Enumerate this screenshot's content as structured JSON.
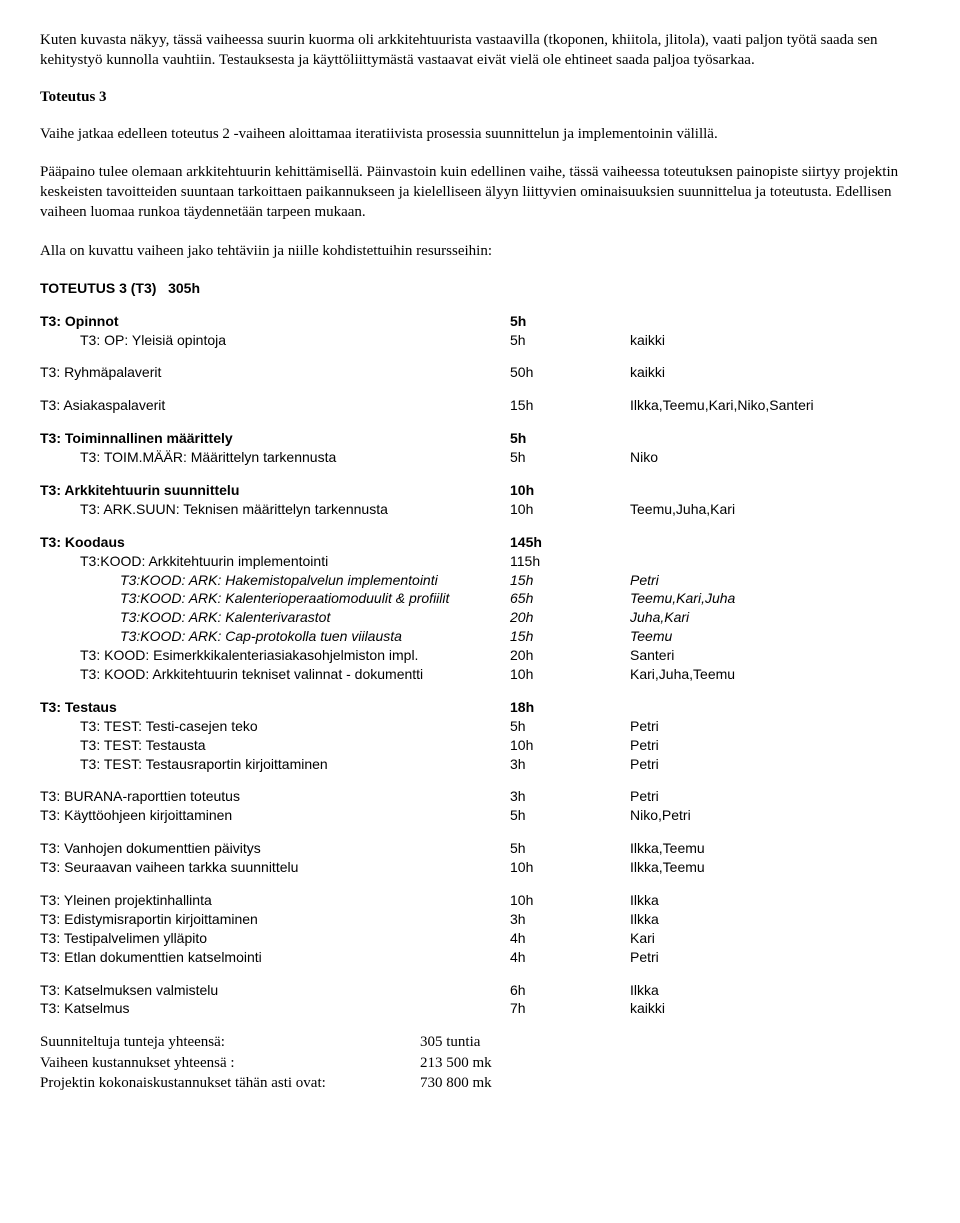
{
  "intro": {
    "p1": "Kuten kuvasta näkyy, tässä vaiheessa suurin kuorma oli arkkitehtuurista vastaavilla (tkoponen, khiitola, jlitola), vaati paljon työtä saada sen kehitystyö kunnolla vauhtiin. Testauksesta ja käyttöliittymästä vastaavat eivät vielä ole ehtineet saada paljoa työsarkaa.",
    "heading": "Toteutus 3",
    "p2": "Vaihe jatkaa edelleen toteutus 2 -vaiheen aloittamaa iteratiivista prosessia suunnittelun ja implementoinin välillä.",
    "p3": "Pääpaino tulee olemaan arkkitehtuurin kehittämisellä. Päinvastoin kuin edellinen vaihe, tässä vaiheessa toteutuksen painopiste siirtyy projektin keskeisten tavoitteiden suuntaan tarkoittaen paikannukseen ja kielelliseen älyyn liittyvien ominaisuuksien suunnittelua ja toteutusta. Edellisen vaiheen luomaa runkoa täydennetään tarpeen mukaan.",
    "p4": "Alla on kuvattu vaiheen jako tehtäviin ja niille kohdistettuihin resursseihin:"
  },
  "table_header": {
    "label": "TOTEUTUS 3 (T3)",
    "hours": "305h"
  },
  "groups": [
    {
      "header": {
        "label": "T3: Opinnot",
        "hours": "5h",
        "res": "",
        "bold": true
      },
      "rows": [
        {
          "label": "T3: OP: Yleisiä opintoja",
          "hours": "5h",
          "res": "kaikki",
          "indent": 1
        }
      ]
    },
    {
      "gap": true,
      "rows": [
        {
          "label": "T3: Ryhmäpalaverit",
          "hours": "50h",
          "res": "kaikki"
        }
      ]
    },
    {
      "rows": [
        {
          "label": "T3: Asiakaspalaverit",
          "hours": "15h",
          "res": "Ilkka,Teemu,Kari,Niko,Santeri"
        }
      ]
    },
    {
      "header": {
        "label": "T3: Toiminnallinen määrittely",
        "hours": "5h",
        "res": "",
        "bold": true
      },
      "rows": [
        {
          "label": "T3: TOIM.MÄÄR: Määrittelyn tarkennusta",
          "hours": "5h",
          "res": "Niko",
          "indent": 1
        }
      ]
    },
    {
      "header": {
        "label": "T3: Arkkitehtuurin suunnittelu",
        "hours": "10h",
        "res": "",
        "bold": true
      },
      "rows": [
        {
          "label": "T3: ARK.SUUN: Teknisen määrittelyn tarkennusta",
          "hours": "10h",
          "res": "Teemu,Juha,Kari",
          "indent": 1
        }
      ]
    },
    {
      "header": {
        "label": "T3: Koodaus",
        "hours": "145h",
        "res": "",
        "bold": true
      },
      "rows": [
        {
          "label": "T3:KOOD: Arkkitehtuurin implementointi",
          "hours": "115h",
          "res": "",
          "indent": 1
        },
        {
          "label": "T3:KOOD: ARK: Hakemistopalvelun implementointi",
          "hours": "15h",
          "res": "Petri",
          "indent": 2,
          "italic": true
        },
        {
          "label": "T3:KOOD: ARK: Kalenterioperaatiomoduulit & profiilit",
          "hours": "65h",
          "res": "Teemu,Kari,Juha",
          "indent": 2,
          "italic": true
        },
        {
          "label": "T3:KOOD: ARK: Kalenterivarastot",
          "hours": "20h",
          "res": "Juha,Kari",
          "indent": 2,
          "italic": true
        },
        {
          "label": "T3:KOOD: ARK: Cap-protokolla tuen viilausta",
          "hours": "15h",
          "res": "Teemu",
          "indent": 2,
          "italic": true
        },
        {
          "label": "T3: KOOD: Esimerkkikalenteriasiakasohjelmiston impl.",
          "hours": "20h",
          "res": "Santeri",
          "indent": 1
        },
        {
          "label": "T3: KOOD: Arkkitehtuurin tekniset valinnat - dokumentti",
          "hours": "10h",
          "res": "Kari,Juha,Teemu",
          "indent": 1
        }
      ]
    },
    {
      "header": {
        "label": "T3: Testaus",
        "hours": "18h",
        "res": "",
        "bold": true
      },
      "rows": [
        {
          "label": "T3: TEST: Testi-casejen teko",
          "hours": "5h",
          "res": "Petri",
          "indent": 1
        },
        {
          "label": "T3: TEST: Testausta",
          "hours": "10h",
          "res": "Petri",
          "indent": 1
        },
        {
          "label": "T3: TEST: Testausraportin kirjoittaminen",
          "hours": "3h",
          "res": "Petri",
          "indent": 1
        }
      ]
    },
    {
      "rows": [
        {
          "label": "T3: BURANA-raporttien toteutus",
          "hours": "3h",
          "res": "Petri"
        },
        {
          "label": "T3: Käyttöohjeen kirjoittaminen",
          "hours": "5h",
          "res": "Niko,Petri"
        }
      ]
    },
    {
      "rows": [
        {
          "label": "T3: Vanhojen dokumenttien päivitys",
          "hours": "5h",
          "res": "Ilkka,Teemu"
        },
        {
          "label": "T3: Seuraavan vaiheen tarkka suunnittelu",
          "hours": "10h",
          "res": "Ilkka,Teemu"
        }
      ]
    },
    {
      "rows": [
        {
          "label": "T3: Yleinen projektinhallinta",
          "hours": "10h",
          "res": "Ilkka"
        },
        {
          "label": "T3: Edistymisraportin kirjoittaminen",
          "hours": "3h",
          "res": "Ilkka"
        },
        {
          "label": "T3: Testipalvelimen ylläpito",
          "hours": "4h",
          "res": "Kari"
        },
        {
          "label": "T3: Etlan dokumenttien katselmointi",
          "hours": "4h",
          "res": "Petri"
        }
      ]
    },
    {
      "rows": [
        {
          "label": "T3: Katselmuksen valmistelu",
          "hours": "6h",
          "res": "Ilkka"
        },
        {
          "label": "T3: Katselmus",
          "hours": "7h",
          "res": "kaikki"
        }
      ]
    }
  ],
  "summary": [
    {
      "label": "Suunniteltuja tunteja yhteensä:",
      "value": "305 tuntia"
    },
    {
      "label": "Vaiheen kustannukset yhteensä :",
      "value": "213 500 mk"
    },
    {
      "label": "Projektin kokonaiskustannukset tähän asti ovat:",
      "value": "730 800 mk"
    }
  ]
}
